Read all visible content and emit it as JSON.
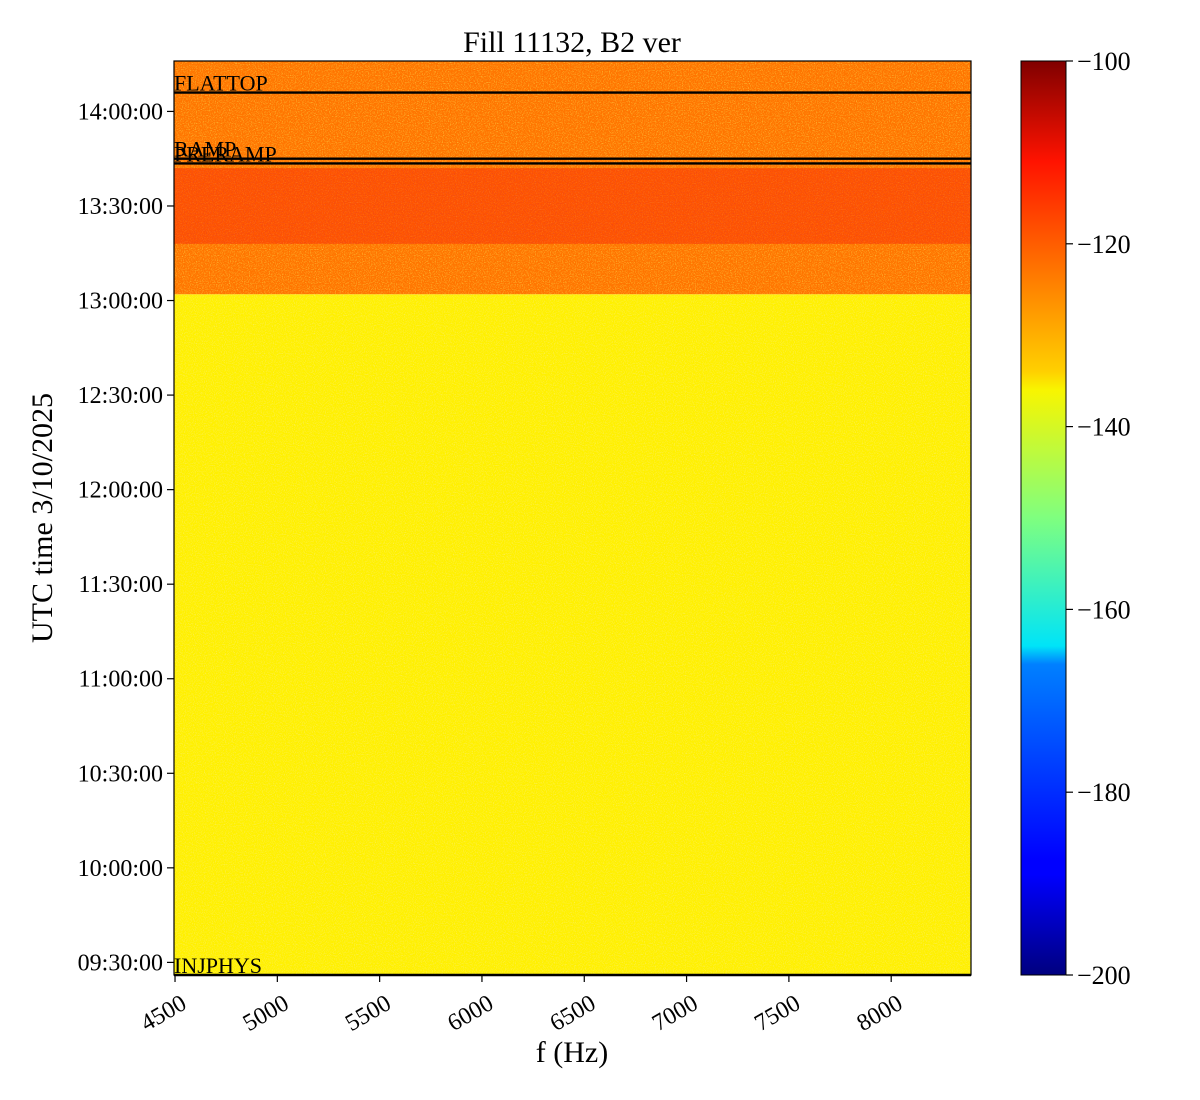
{
  "chart_data": {
    "type": "heatmap",
    "title": "Fill 11132, B2 ver",
    "xlabel": "f (Hz)",
    "ylabel": "UTC time 3/10/2025",
    "xlim": [
      4495,
      8390
    ],
    "ylim": [
      "09:26:00",
      "14:16:00"
    ],
    "x_ticks": [
      4500,
      5000,
      5500,
      6000,
      6500,
      7000,
      7500,
      8000
    ],
    "x_tick_labels": [
      "4500",
      "5000",
      "5500",
      "6000",
      "6500",
      "7000",
      "7500",
      "8000"
    ],
    "y_ticks": [
      "09:30:00",
      "10:00:00",
      "10:30:00",
      "11:00:00",
      "11:30:00",
      "12:00:00",
      "12:30:00",
      "13:00:00",
      "13:30:00",
      "14:00:00"
    ],
    "colorbar": {
      "colormap": "jet",
      "range": [
        -200,
        -100
      ],
      "ticks": [
        -100,
        -120,
        -140,
        -160,
        -180,
        -200
      ],
      "tick_labels": [
        "−100",
        "−120",
        "−140",
        "−160",
        "−180",
        "−200"
      ]
    },
    "regions": [
      {
        "start": "09:26:00",
        "end": "13:02:00",
        "typical_value": -136
      },
      {
        "start": "13:02:00",
        "end": "14:16:00",
        "typical_value": -124
      },
      {
        "start": "13:18:00",
        "end": "13:42:00",
        "typical_value": -118
      }
    ],
    "annotations": [
      {
        "label": "FLATTOP",
        "time": "14:06:00"
      },
      {
        "label": "RAMP",
        "time": "13:45:00"
      },
      {
        "label": "PRERAMP",
        "time": "13:43:30"
      },
      {
        "label": "INJPHYS",
        "time": "09:26:00"
      }
    ],
    "grid": false,
    "colors": {
      "low_band": "#c8f03c",
      "high_band": "#f08c14",
      "event_lines": "#000000"
    }
  }
}
